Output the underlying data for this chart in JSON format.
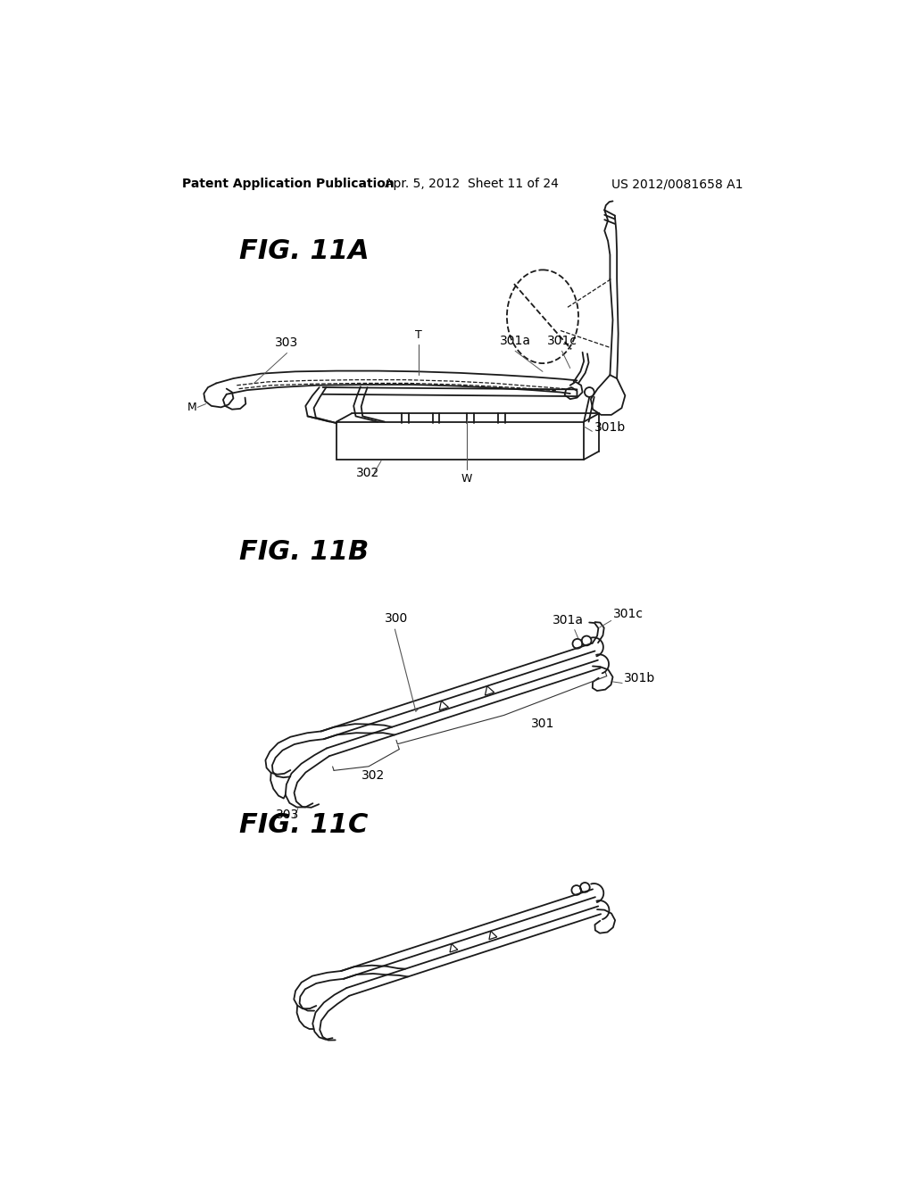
{
  "background_color": "#ffffff",
  "header_left": "Patent Application Publication",
  "header_middle": "Apr. 5, 2012  Sheet 11 of 24",
  "header_right": "US 2012/0081658 A1",
  "fig11A_label": "FIG. 11A",
  "fig11B_label": "FIG. 11B",
  "fig11C_label": "FIG. 11C",
  "line_color": "#1a1a1a",
  "text_color": "#000000",
  "header_fontsize": 10,
  "fig_label_fontsize": 22,
  "annotation_fontsize": 10
}
